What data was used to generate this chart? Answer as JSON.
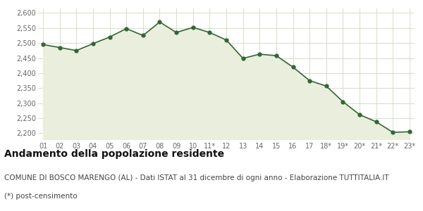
{
  "x_labels": [
    "01",
    "02",
    "03",
    "04",
    "05",
    "06",
    "07",
    "08",
    "09",
    "10",
    "11*",
    "12",
    "13",
    "14",
    "15",
    "16",
    "17",
    "18*",
    "19*",
    "20*",
    "21*",
    "22*",
    "23*"
  ],
  "y_values": [
    2495,
    2485,
    2475,
    2498,
    2520,
    2548,
    2525,
    2570,
    2535,
    2552,
    2535,
    2510,
    2449,
    2463,
    2458,
    2420,
    2375,
    2357,
    2305,
    2262,
    2238,
    2203,
    2205
  ],
  "line_color": "#336633",
  "fill_color": "#eaeedc",
  "marker_color": "#336633",
  "background_color": "#ffffff",
  "grid_color": "#d0d8c0",
  "ylim": [
    2180,
    2615
  ],
  "yticks": [
    2200,
    2250,
    2300,
    2350,
    2400,
    2450,
    2500,
    2550,
    2600
  ],
  "title": "Andamento della popolazione residente",
  "subtitle": "COMUNE DI BOSCO MARENGO (AL) - Dati ISTAT al 31 dicembre di ogni anno - Elaborazione TUTTITALIA.IT",
  "footnote": "(*) post-censimento",
  "title_fontsize": 10,
  "subtitle_fontsize": 7.5,
  "footnote_fontsize": 7.5,
  "tick_fontsize": 7,
  "tick_color": "#666666"
}
